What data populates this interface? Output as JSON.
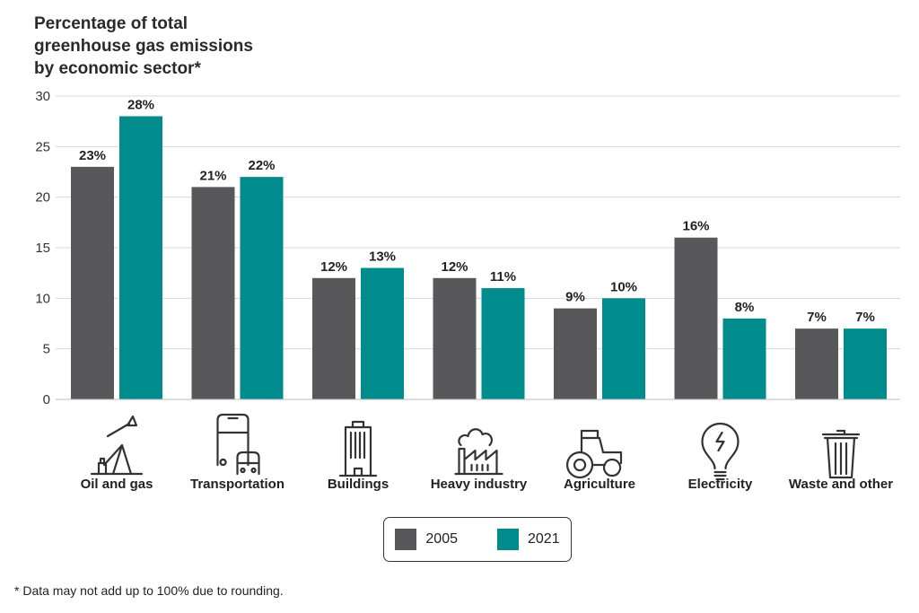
{
  "chart_data": {
    "type": "bar",
    "title": "Percentage of total\ngreenhouse gas emissions\nby economic sector*",
    "xlabel": "",
    "ylabel": "",
    "ylim": [
      0,
      30
    ],
    "yticks": [
      0,
      5,
      10,
      15,
      20,
      25,
      30
    ],
    "grid": true,
    "legend_placement": "bottom-center",
    "categories": [
      "Oil and gas",
      "Transportation",
      "Buildings",
      "Heavy industry",
      "Agriculture",
      "Electricity",
      "Waste and other"
    ],
    "category_icons": [
      "oil-pump-icon",
      "bus-car-icon",
      "building-icon",
      "factory-icon",
      "tractor-icon",
      "lightbulb-icon",
      "trash-can-icon"
    ],
    "series": [
      {
        "name": "2005",
        "color": "#58585a",
        "values": [
          23,
          21,
          12,
          12,
          9,
          16,
          7
        ],
        "labels": [
          "23%",
          "21%",
          "12%",
          "12%",
          "9%",
          "16%",
          "7%"
        ]
      },
      {
        "name": "2021",
        "color": "#008b8c",
        "values": [
          28,
          22,
          13,
          11,
          10,
          8,
          7
        ],
        "labels": [
          "28%",
          "22%",
          "13%",
          "11%",
          "10%",
          "8%",
          "7%"
        ]
      }
    ],
    "footnote": "* Data may not add up to 100% due to rounding."
  }
}
